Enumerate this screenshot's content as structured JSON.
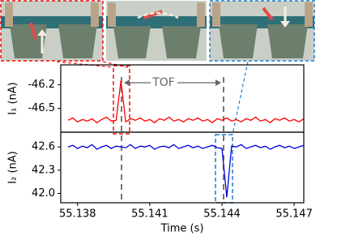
{
  "chart_data": [
    {
      "type": "line",
      "ylabel": "I₁ (nA)",
      "annotation": "TOF",
      "x": [
        55.1376,
        55.1378,
        55.138,
        55.1382,
        55.1384,
        55.1386,
        55.1388,
        55.139,
        55.1392,
        55.1394,
        55.1396,
        55.1398,
        55.14,
        55.1402,
        55.1404,
        55.1406,
        55.1408,
        55.141,
        55.1412,
        55.1414,
        55.1416,
        55.1418,
        55.142,
        55.1422,
        55.1424,
        55.1426,
        55.1428,
        55.143,
        55.1432,
        55.1434,
        55.1436,
        55.1438,
        55.144,
        55.1442,
        55.1444,
        55.1446,
        55.1448,
        55.145,
        55.1452,
        55.1454,
        55.1456,
        55.1458,
        55.146,
        55.1462,
        55.1464,
        55.1466,
        55.1468,
        55.147,
        55.1472,
        55.1474
      ],
      "series": [
        {
          "color": "#ff0000",
          "values": [
            -46.65,
            -46.62,
            -46.67,
            -46.64,
            -46.66,
            -46.63,
            -46.68,
            -46.64,
            -46.61,
            -46.66,
            -46.65,
            -46.15,
            -46.67,
            -46.63,
            -46.65,
            -46.62,
            -46.66,
            -46.64,
            -46.68,
            -46.63,
            -46.65,
            -46.61,
            -46.66,
            -46.64,
            -46.67,
            -46.63,
            -46.65,
            -46.62,
            -46.66,
            -46.64,
            -46.68,
            -46.63,
            -46.65,
            -46.62,
            -46.66,
            -46.64,
            -46.67,
            -46.63,
            -46.65,
            -46.61,
            -46.66,
            -46.64,
            -46.68,
            -46.63,
            -46.65,
            -46.62,
            -46.66,
            -46.64,
            -46.67,
            -46.63
          ]
        }
      ],
      "xlim": [
        55.1373,
        55.1474
      ],
      "ylim": [
        -46.8,
        -45.95
      ],
      "yticks": [
        -46.2,
        -46.5
      ]
    },
    {
      "type": "line",
      "ylabel": "I₂ (nA)",
      "xlabel": "Time (s)",
      "x": [
        55.1376,
        55.1378,
        55.138,
        55.1382,
        55.1384,
        55.1386,
        55.1388,
        55.139,
        55.1392,
        55.1394,
        55.1396,
        55.1398,
        55.14,
        55.1402,
        55.1404,
        55.1406,
        55.1408,
        55.141,
        55.1412,
        55.1414,
        55.1416,
        55.1418,
        55.142,
        55.1422,
        55.1424,
        55.1426,
        55.1428,
        55.143,
        55.1432,
        55.1434,
        55.1436,
        55.1438,
        55.144,
        55.1442,
        55.1444,
        55.1446,
        55.1448,
        55.145,
        55.1452,
        55.1454,
        55.1456,
        55.1458,
        55.146,
        55.1462,
        55.1464,
        55.1466,
        55.1468,
        55.147,
        55.1472,
        55.1474
      ],
      "series": [
        {
          "color": "#0000dd",
          "values": [
            42.6,
            42.62,
            42.58,
            42.61,
            42.59,
            42.63,
            42.57,
            42.6,
            42.62,
            42.58,
            42.61,
            42.6,
            42.59,
            42.63,
            42.58,
            42.61,
            42.6,
            42.62,
            42.57,
            42.6,
            42.61,
            42.59,
            42.63,
            42.58,
            42.6,
            42.62,
            42.59,
            42.61,
            42.58,
            42.6,
            42.62,
            42.59,
            42.58,
            41.95,
            42.61,
            42.6,
            42.63,
            42.58,
            42.6,
            42.62,
            42.59,
            42.61,
            42.57,
            42.6,
            42.62,
            42.59,
            42.61,
            42.58,
            42.6,
            42.62
          ]
        }
      ],
      "xlim": [
        55.1373,
        55.1474
      ],
      "ylim": [
        41.88,
        42.79
      ],
      "xticks": [
        55.138,
        55.141,
        55.144,
        55.147
      ],
      "yticks": [
        42.6,
        42.3,
        {
          "value": 42,
          "label": "42.0"
        }
      ]
    }
  ]
}
